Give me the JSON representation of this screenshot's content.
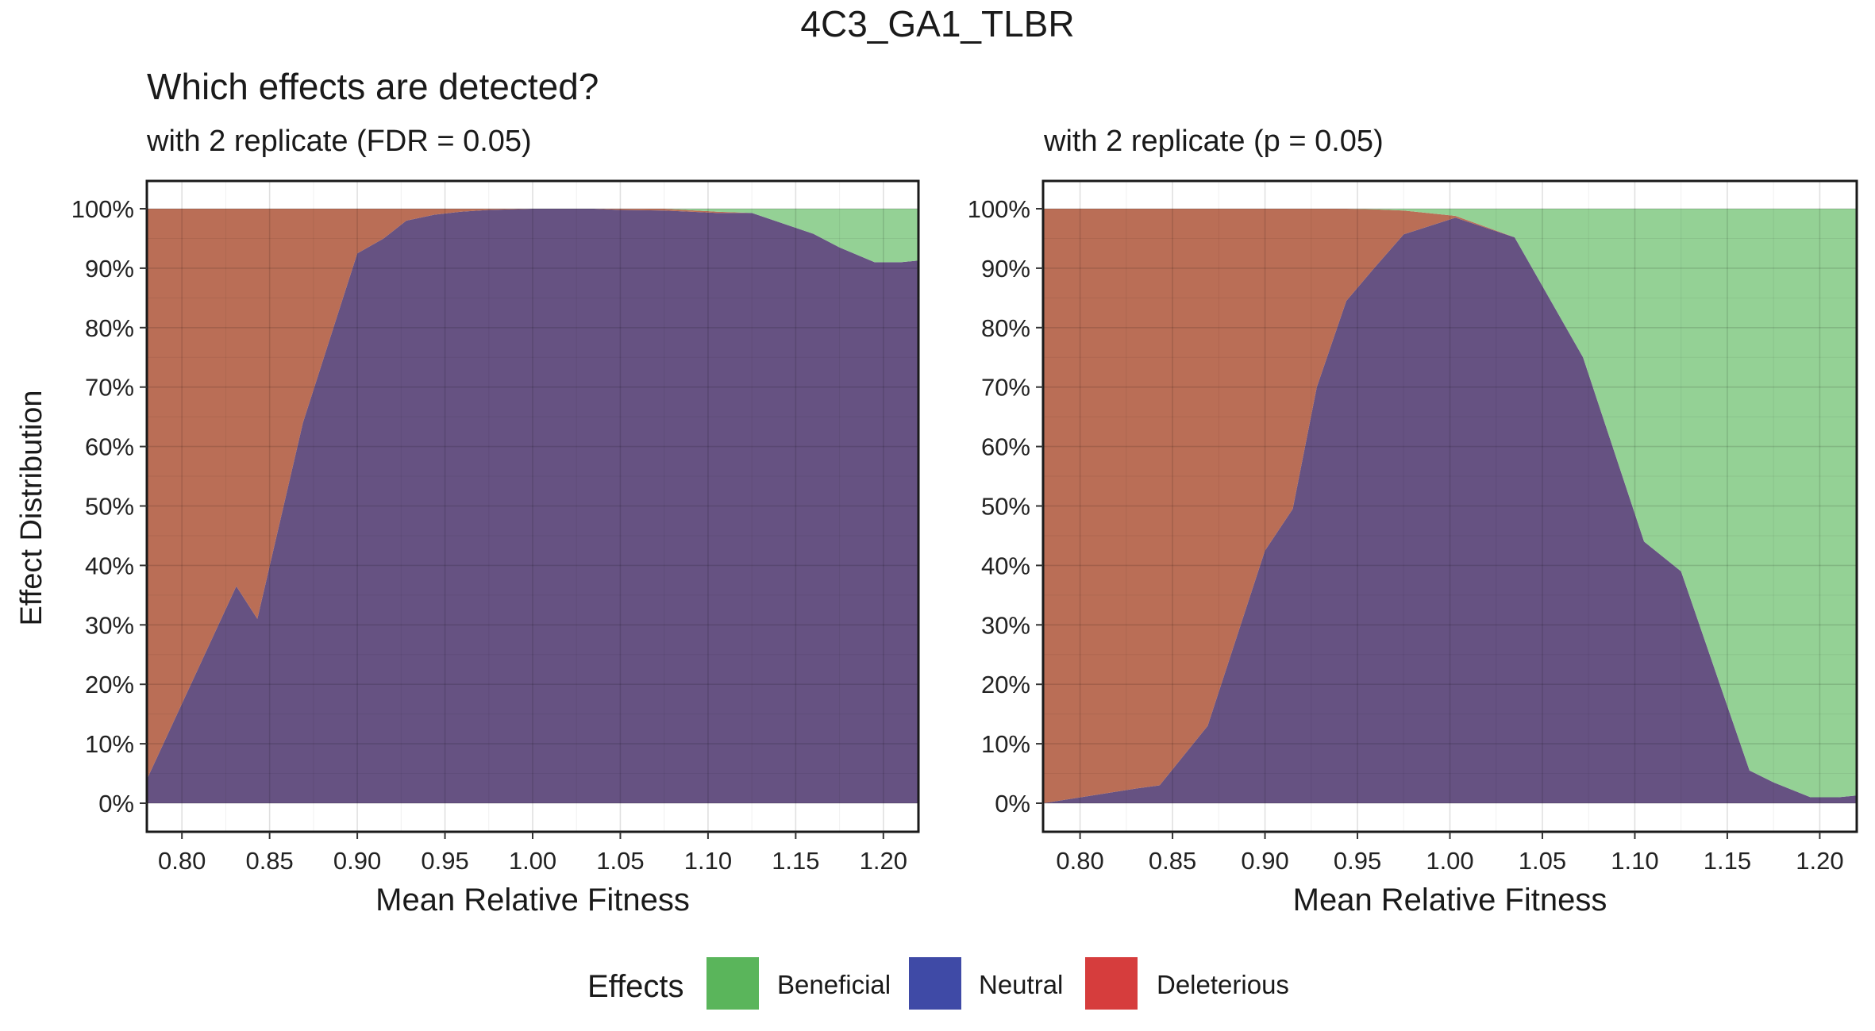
{
  "title": "4C3_GA1_TLBR",
  "colors": {
    "beneficial": "#94D195",
    "neutral": "#665282",
    "deleterious": "#BA6E56",
    "legend_beneficial": "#5AB55B",
    "legend_neutral": "#3F4AA6",
    "legend_deleterious": "#D63D3D"
  },
  "legend": {
    "title": "Effects",
    "items": [
      {
        "key": "beneficial",
        "label": "Beneficial"
      },
      {
        "key": "neutral",
        "label": "Neutral"
      },
      {
        "key": "deleterious",
        "label": "Deleterious"
      }
    ]
  },
  "chart_data": [
    {
      "type": "area",
      "stacked": true,
      "heading": "Which effects are detected?",
      "subtitle": "with 2 replicate (FDR = 0.05)",
      "xlabel": "Mean Relative Fitness",
      "ylabel": "Effect Distribution",
      "xlim": [
        0.78,
        1.22
      ],
      "ylim": [
        0,
        1
      ],
      "x_ticks": [
        "0.80",
        "0.85",
        "0.90",
        "0.95",
        "1.00",
        "1.05",
        "1.10",
        "1.15",
        "1.20"
      ],
      "y_ticks": [
        "0%",
        "10%",
        "20%",
        "30%",
        "40%",
        "50%",
        "60%",
        "70%",
        "80%",
        "90%",
        "100%"
      ],
      "grid": true,
      "x": [
        0.78,
        0.831,
        0.843,
        0.869,
        0.9,
        0.915,
        0.928,
        0.944,
        0.959,
        0.975,
        1.0,
        1.035,
        1.05,
        1.075,
        1.105,
        1.125,
        1.16,
        1.175,
        1.195,
        1.21,
        1.22
      ],
      "series": [
        {
          "key": "neutral",
          "values": [
            0.04,
            0.365,
            0.31,
            0.64,
            0.925,
            0.95,
            0.98,
            0.99,
            0.995,
            0.998,
            1.0,
            1.0,
            0.998,
            0.997,
            0.993,
            0.993,
            0.958,
            0.935,
            0.91,
            0.91,
            0.913
          ]
        },
        {
          "key": "deleterious",
          "values": [
            0.96,
            0.635,
            0.69,
            0.36,
            0.075,
            0.05,
            0.02,
            0.01,
            0.005,
            0.002,
            0.0,
            0.0,
            0.002,
            0.003,
            0.002,
            0.0,
            0.0,
            0.0,
            0.0,
            0.0,
            0.0
          ]
        },
        {
          "key": "beneficial",
          "values": [
            0.0,
            0.0,
            0.0,
            0.0,
            0.0,
            0.0,
            0.0,
            0.0,
            0.0,
            0.0,
            0.0,
            0.0,
            0.0,
            0.0,
            0.005,
            0.007,
            0.042,
            0.065,
            0.09,
            0.09,
            0.087
          ]
        }
      ]
    },
    {
      "type": "area",
      "stacked": true,
      "subtitle": "with 2 replicate (p = 0.05)",
      "xlabel": "Mean Relative Fitness",
      "ylabel": "",
      "xlim": [
        0.78,
        1.22
      ],
      "ylim": [
        0,
        1
      ],
      "x_ticks": [
        "0.80",
        "0.85",
        "0.90",
        "0.95",
        "1.00",
        "1.05",
        "1.10",
        "1.15",
        "1.20"
      ],
      "y_ticks": [
        "0%",
        "10%",
        "20%",
        "30%",
        "40%",
        "50%",
        "60%",
        "70%",
        "80%",
        "90%",
        "100%"
      ],
      "grid": true,
      "x": [
        0.78,
        0.831,
        0.843,
        0.869,
        0.9,
        0.915,
        0.928,
        0.944,
        0.959,
        0.975,
        1.003,
        1.035,
        1.05,
        1.072,
        1.105,
        1.125,
        1.162,
        1.175,
        1.195,
        1.21,
        1.22
      ],
      "series": [
        {
          "key": "neutral",
          "values": [
            0.0,
            0.025,
            0.03,
            0.13,
            0.425,
            0.495,
            0.7,
            0.845,
            0.9,
            0.957,
            0.985,
            0.952,
            0.87,
            0.75,
            0.44,
            0.39,
            0.055,
            0.035,
            0.01,
            0.01,
            0.013
          ]
        },
        {
          "key": "deleterious",
          "values": [
            1.0,
            0.975,
            0.97,
            0.87,
            0.575,
            0.505,
            0.3,
            0.155,
            0.099,
            0.04,
            0.003,
            0.0,
            0.0,
            0.0,
            0.0,
            0.0,
            0.0,
            0.0,
            0.0,
            0.0,
            0.0
          ]
        },
        {
          "key": "beneficial",
          "values": [
            0.0,
            0.0,
            0.0,
            0.0,
            0.0,
            0.0,
            0.0,
            0.0,
            0.001,
            0.003,
            0.012,
            0.048,
            0.13,
            0.25,
            0.56,
            0.61,
            0.945,
            0.965,
            0.99,
            0.99,
            0.987
          ]
        }
      ]
    }
  ]
}
